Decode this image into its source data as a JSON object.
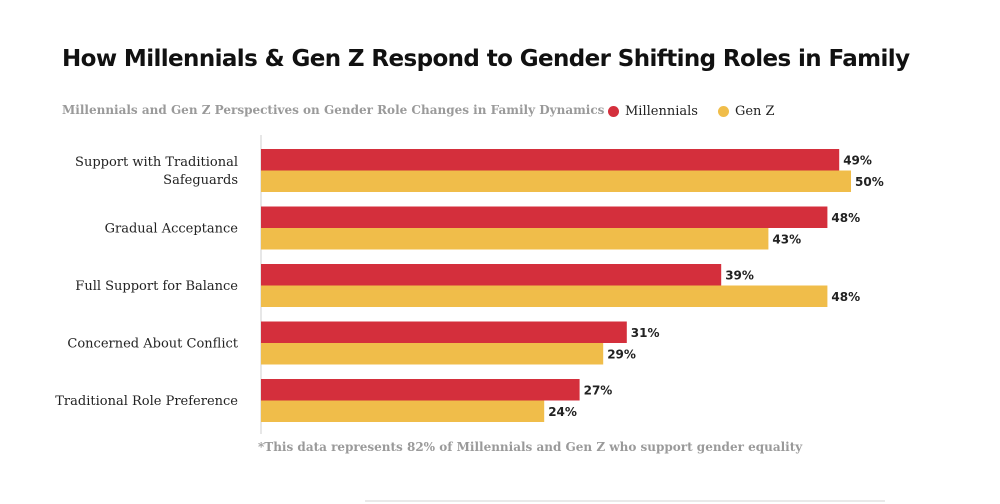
{
  "chart_data": {
    "type": "bar",
    "orientation": "horizontal",
    "title": "How Millennials & Gen Z Respond to Gender Shifting Roles in Family",
    "subtitle": "Millennials and Gen Z Perspectives on Gender Role Changes in Family Dynamics",
    "categories": [
      [
        "Support with Traditional",
        "Safeguards"
      ],
      [
        "Gradual Acceptance"
      ],
      [
        "Full Support for Balance"
      ],
      [
        "Concerned About Conflict"
      ],
      [
        "Traditional Role Preference"
      ]
    ],
    "series": [
      {
        "name": "Millennials",
        "color": "#d42f3c",
        "values": [
          49,
          48,
          39,
          31,
          27
        ]
      },
      {
        "name": "Gen Z",
        "color": "#f0bd4a",
        "values": [
          50,
          43,
          48,
          29,
          24
        ]
      }
    ],
    "value_suffix": "%",
    "xlim": [
      0,
      50
    ],
    "grid": false,
    "legend_position": "top-right",
    "footnote": "*This data represents 82% of Millennials and Gen Z who support gender equality"
  }
}
